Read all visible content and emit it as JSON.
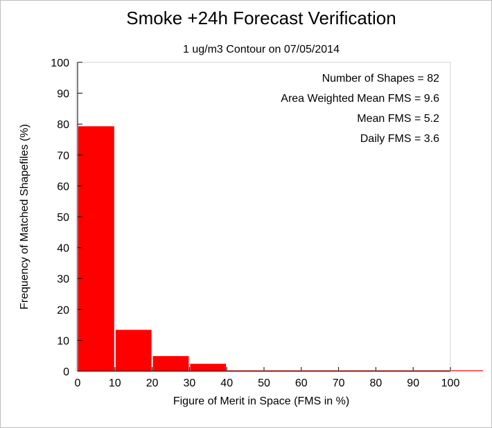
{
  "chart_data": {
    "type": "bar",
    "title": "Smoke +24h Forecast Verification",
    "subtitle": "1 ug/m3 Contour on 07/05/2014",
    "xlabel": "Figure of Merit in Space (FMS in %)",
    "ylabel": "Frequency of Matched Shapefiles (%)",
    "xlim": [
      0,
      100
    ],
    "ylim": [
      0,
      100
    ],
    "xticks": [
      "0",
      "10",
      "20",
      "30",
      "40",
      "50",
      "60",
      "70",
      "80",
      "90",
      "100"
    ],
    "yticks": [
      "0",
      "10",
      "20",
      "30",
      "40",
      "50",
      "60",
      "70",
      "80",
      "90",
      "100"
    ],
    "bin_width": 10,
    "bins": [
      {
        "x0": 0,
        "x1": 10,
        "value": 79.3
      },
      {
        "x0": 10,
        "x1": 20,
        "value": 13.4
      },
      {
        "x0": 20,
        "x1": 30,
        "value": 4.9
      },
      {
        "x0": 30,
        "x1": 40,
        "value": 2.4
      },
      {
        "x0": 40,
        "x1": 50,
        "value": 0
      },
      {
        "x0": 50,
        "x1": 60,
        "value": 0
      },
      {
        "x0": 60,
        "x1": 70,
        "value": 0
      },
      {
        "x0": 70,
        "x1": 80,
        "value": 0
      },
      {
        "x0": 80,
        "x1": 90,
        "value": 0
      },
      {
        "x0": 90,
        "x1": 100,
        "value": 0
      },
      {
        "x0": 100,
        "x1": 110,
        "value": 0
      }
    ],
    "bar_color": "#ff0000",
    "grid": false,
    "annotations": [
      "Number of Shapes = 82",
      "Area Weighted Mean FMS = 9.6",
      "Mean FMS = 5.2",
      "Daily FMS = 3.6"
    ]
  }
}
